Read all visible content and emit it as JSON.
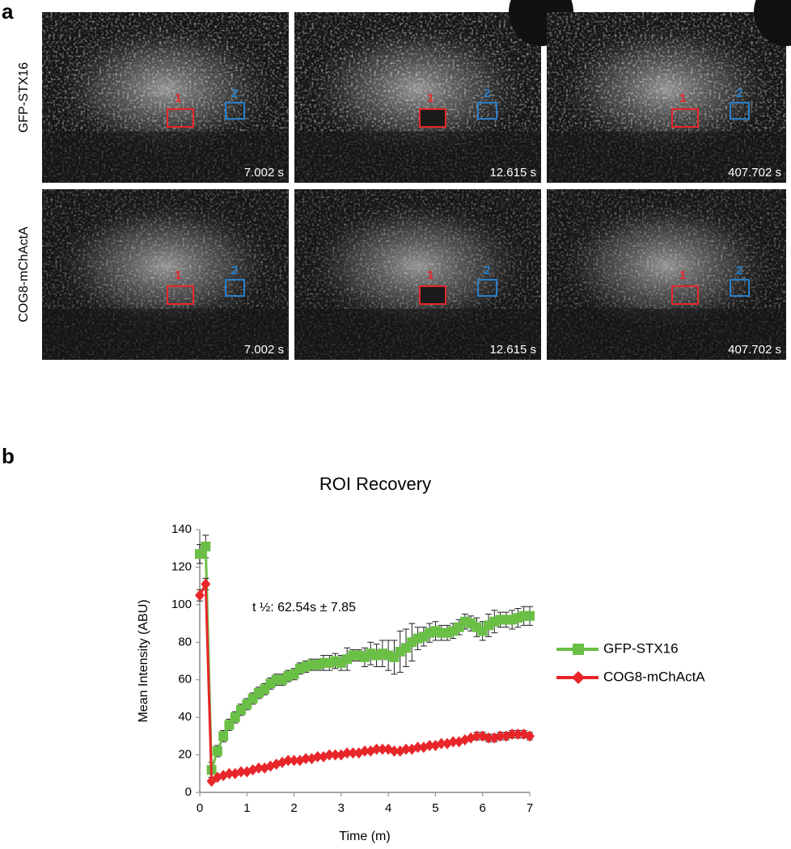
{
  "panel_a": {
    "label": "a",
    "rows": [
      {
        "label": "GFP-STX16",
        "timestamps": [
          "7.002 s",
          "12.615 s",
          "407.702 s"
        ]
      },
      {
        "label": "COG8-mChActA",
        "timestamps": [
          "7.002 s",
          "12.615 s",
          "407.702 s"
        ]
      }
    ],
    "roi_labels": [
      "1",
      "2"
    ]
  },
  "chart_data": {
    "type": "line",
    "panel_label": "b",
    "title": "ROI Recovery",
    "x_label": "Time (m)",
    "y_label": "Mean Intensity (ABU)",
    "annotation": "t ½: 62.54s ± 7.85",
    "x": [
      0,
      0.125,
      0.25,
      0.375,
      0.5,
      0.625,
      0.75,
      0.875,
      1,
      1.125,
      1.25,
      1.375,
      1.5,
      1.625,
      1.75,
      1.875,
      2,
      2.125,
      2.25,
      2.375,
      2.5,
      2.625,
      2.75,
      2.875,
      3,
      3.125,
      3.25,
      3.375,
      3.5,
      3.625,
      3.75,
      3.875,
      4,
      4.125,
      4.25,
      4.375,
      4.5,
      4.625,
      4.75,
      4.875,
      5,
      5.125,
      5.25,
      5.375,
      5.5,
      5.625,
      5.75,
      5.875,
      6,
      6.125,
      6.25,
      6.375,
      6.5,
      6.625,
      6.75,
      6.875,
      7
    ],
    "series": [
      {
        "name": "GFP-STX16",
        "color": "#6abf45",
        "marker": "square",
        "values": [
          127,
          131,
          12,
          22,
          30,
          36,
          40,
          44,
          47,
          50,
          53,
          55,
          58,
          60,
          60,
          62,
          63,
          66,
          67,
          68,
          68,
          69,
          69,
          70,
          69,
          71,
          73,
          73,
          72,
          74,
          73,
          74,
          73,
          72,
          75,
          77,
          80,
          82,
          83,
          85,
          86,
          85,
          85,
          86,
          88,
          91,
          90,
          88,
          86,
          89,
          91,
          92,
          92,
          92,
          93,
          94,
          94
        ],
        "errors": [
          5,
          6,
          4,
          3,
          3,
          3,
          3,
          3,
          3,
          3,
          3,
          3,
          3,
          3,
          3,
          3,
          3,
          3,
          3,
          3,
          3,
          4,
          4,
          4,
          4,
          6,
          3,
          3,
          5,
          6,
          6,
          7,
          8,
          9,
          11,
          10,
          10,
          6,
          5,
          5,
          5,
          4,
          4,
          4,
          4,
          4,
          4,
          5,
          5,
          6,
          6,
          4,
          4,
          5,
          5,
          5,
          5
        ]
      },
      {
        "name": "COG8-mChActA",
        "color": "#e8262a",
        "marker": "diamond",
        "values": [
          105,
          111,
          6,
          8,
          9,
          10,
          10,
          11,
          11,
          12,
          13,
          13,
          14,
          15,
          16,
          17,
          17,
          17,
          18,
          18,
          19,
          19,
          20,
          20,
          20,
          21,
          21,
          21,
          22,
          22,
          23,
          23,
          23,
          22,
          22,
          23,
          23,
          24,
          24,
          25,
          25,
          26,
          26,
          27,
          27,
          28,
          29,
          30,
          30,
          29,
          29,
          30,
          30,
          31,
          31,
          31,
          30
        ],
        "errors": [
          3,
          3,
          1,
          1,
          1,
          1,
          1,
          1,
          1,
          1,
          1,
          1,
          1,
          1,
          1,
          1,
          1,
          1,
          1,
          1,
          1,
          1,
          1,
          1,
          1,
          1,
          1,
          1,
          1,
          1,
          1,
          1,
          1,
          1,
          1,
          1,
          1,
          1,
          1,
          1,
          1,
          1,
          1,
          1,
          1,
          1,
          1,
          2,
          2,
          2,
          2,
          2,
          2,
          2,
          2,
          2,
          2
        ]
      }
    ],
    "xlim": [
      0,
      7
    ],
    "xticks": [
      0,
      1,
      2,
      3,
      4,
      5,
      6,
      7
    ],
    "ylim": [
      0,
      140
    ],
    "yticks": [
      0,
      20,
      40,
      60,
      80,
      100,
      120,
      140
    ],
    "grid": false,
    "legend": "right"
  }
}
